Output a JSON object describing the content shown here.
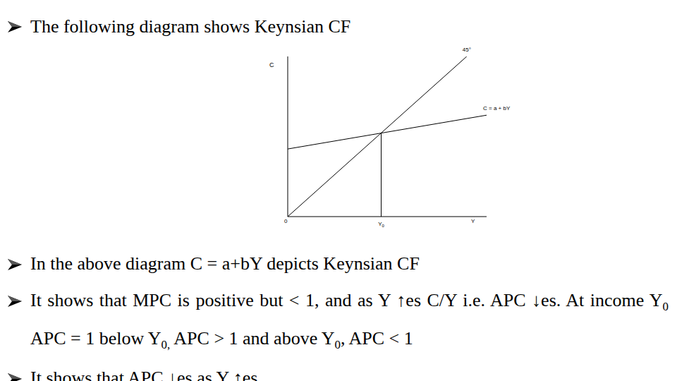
{
  "slide": {
    "heading": "The following diagram shows Keynsian CF",
    "bullets": [
      [
        "In the above diagram C = a+bY depicts Keynsian CF"
      ],
      [
        "It shows that MPC is positive but < 1, and as Y ↑es C/Y i.e. APC ↓es. At income Y",
        {
          "sub": "0"
        },
        " APC = 1 below Y",
        {
          "sub": "0,"
        },
        " APC > 1 and above Y",
        {
          "sub": "0"
        },
        ", APC < 1"
      ],
      [
        " It shows that APC ↓es as Y ↑es."
      ]
    ]
  },
  "chart_data": {
    "type": "line",
    "x_label": "Y",
    "y_label": "C",
    "origin_label": "0",
    "xlim": [
      0,
      100
    ],
    "ylim": [
      0,
      90
    ],
    "tick_labels": false,
    "grid": false,
    "series": [
      {
        "name": "C = a + bY",
        "color": "#000000",
        "x": [
          0,
          100
        ],
        "values": [
          38,
          57
        ]
      },
      {
        "name": "45°",
        "color": "#000000",
        "x": [
          0,
          90
        ],
        "values": [
          0,
          90
        ]
      }
    ],
    "drop_line": {
      "x": 47,
      "y": 47,
      "label": "Y0"
    }
  }
}
